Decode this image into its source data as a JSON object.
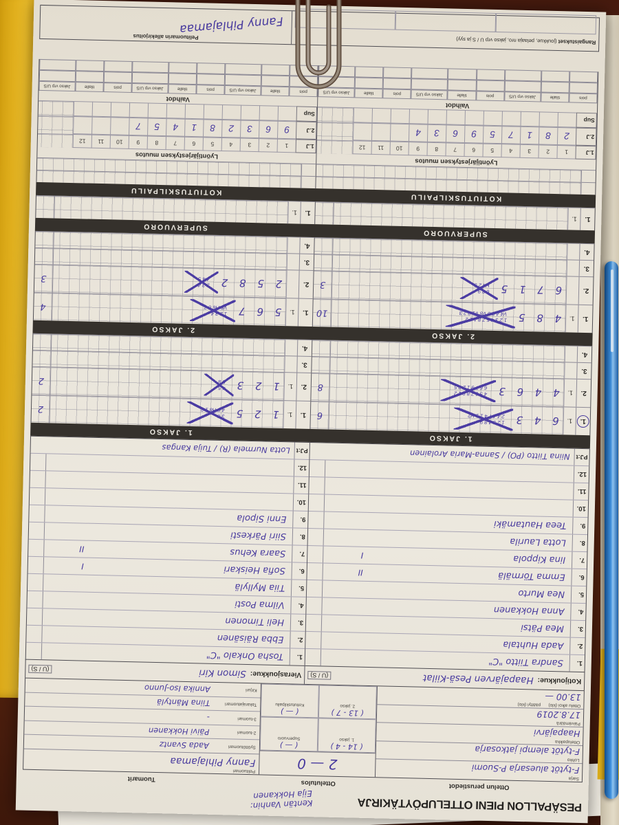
{
  "form": {
    "title": "PESÄPALLON PIENI OTTELUPÖYTÄKIRJA",
    "annotation": {
      "line1": "Kentän Vanhin:",
      "line2": "Eija Hokkanen"
    },
    "section_headers": {
      "perustiedot": "Ottelun perustiedot",
      "tulos": "Ottelutulos",
      "tuomarit": "Tuomarit"
    },
    "perustiedot": {
      "rows": [
        {
          "label": "Sarja",
          "value": "F-tytöt aluesarja P-Suomi"
        },
        {
          "label": "Lohko",
          "value": "F-tytöt alempi jatkosarja"
        },
        {
          "label": "Ottelupaikka",
          "value": "Haapajärvi"
        },
        {
          "label": "Päivämäärä",
          "value": "17.8.2019"
        }
      ],
      "time": {
        "label1": "Ottelu alkoi (klo)",
        "value1": "13.00 —",
        "label2": "päättyi (klo)",
        "value2": ""
      }
    },
    "tulos": {
      "total": "2 — 0",
      "parts": [
        {
          "value": "( 14 - 4 )",
          "label": "1. jakso"
        },
        {
          "value": "(  —  )",
          "label": "Supervuoro"
        },
        {
          "value": "( 13 - 7 )",
          "label": "2. jakso"
        },
        {
          "value": "(  —  )",
          "label": "Kotiutuskilpailu"
        }
      ]
    },
    "tuomarit": {
      "peli": {
        "label": "Pelituomari",
        "value": "Fanny Pihlajamaa"
      },
      "rows": [
        {
          "label": "Syöttötuomari",
          "value": "Aada Svantz"
        },
        {
          "label": "2-tuomari",
          "value": "Päivi Hokkanen"
        },
        {
          "label": "3-tuomari",
          "value": "-"
        },
        {
          "label": "Takarajatuomari",
          "value": "Tiina Mäntylä"
        },
        {
          "label": "Kirjuri",
          "value": "Annika Iso-Junno"
        }
      ]
    },
    "teams": {
      "home": {
        "label": "Kotijoukkue:",
        "name": "Haapajärven Pesä-Kiilat",
        "us": "(U / S)"
      },
      "away": {
        "label": "Vierasjoukkue:",
        "name": "Simon Kiri",
        "us": "(U / S)"
      }
    },
    "rosters": {
      "home": {
        "pj_label": "PJ:t",
        "pj": "Niina Tiitto (PO) / Sanna-Maria Arolainen",
        "players": [
          {
            "nr": "1.",
            "name": "Sandra Tiitto \"C\"",
            "mark": ""
          },
          {
            "nr": "2.",
            "name": "Aada Huhtala",
            "mark": ""
          },
          {
            "nr": "3.",
            "name": "Mea Pätsi",
            "mark": ""
          },
          {
            "nr": "4.",
            "name": "Anna Hokkanen",
            "mark": ""
          },
          {
            "nr": "5.",
            "name": "Nea Murto",
            "mark": ""
          },
          {
            "nr": "6.",
            "name": "Emma Törmälä",
            "mark": "II"
          },
          {
            "nr": "7.",
            "name": "Iina Kippola",
            "mark": "I"
          },
          {
            "nr": "8.",
            "name": "Lotta Laurila",
            "mark": ""
          },
          {
            "nr": "9.",
            "name": "Teea Hautamäki",
            "mark": ""
          },
          {
            "nr": "10.",
            "name": "",
            "mark": ""
          },
          {
            "nr": "11.",
            "name": "",
            "mark": ""
          },
          {
            "nr": "12.",
            "name": "",
            "mark": ""
          }
        ]
      },
      "away": {
        "pj_label": "PJ:t",
        "pj": "Lotta Nurmela (R) / Tuija Kangas",
        "players": [
          {
            "nr": "1.",
            "name": "Tosha Onkalo \"C\"",
            "mark": ""
          },
          {
            "nr": "2.",
            "name": "Ebba Räisänen",
            "mark": ""
          },
          {
            "nr": "3.",
            "name": "Heli Timonen",
            "mark": ""
          },
          {
            "nr": "4.",
            "name": "Vilma Posti",
            "mark": ""
          },
          {
            "nr": "5.",
            "name": "Tiia Myllylä",
            "mark": ""
          },
          {
            "nr": "6.",
            "name": "Sofia Heiskari",
            "mark": "I"
          },
          {
            "nr": "7.",
            "name": "Saara Kehus",
            "mark": "II"
          },
          {
            "nr": "8.",
            "name": "Siiri Pärkesti",
            "mark": ""
          },
          {
            "nr": "9.",
            "name": "Enni Sipola",
            "mark": ""
          },
          {
            "nr": "10.",
            "name": "",
            "mark": ""
          },
          {
            "nr": "11.",
            "name": "",
            "mark": ""
          },
          {
            "nr": "12.",
            "name": "",
            "mark": ""
          }
        ]
      }
    },
    "periods": [
      {
        "bar": "1. JAKSO",
        "home": [
          {
            "nr": "1.",
            "sub": "1.",
            "circled": true,
            "big": "6 4 3",
            "small": [
              "1 2 3 4 8 9",
              "2 4 4 7 4 1 1 H2"
            ],
            "x": true,
            "runs": "6"
          },
          {
            "nr": "2.",
            "sub": "1.",
            "big": "4 4 6 3",
            "small": [
              "4 5 6 7 8 9 1 2",
              "6 6 7 9 1 2 3 5"
            ],
            "x": true,
            "runs": "8"
          },
          {
            "nr": "3.",
            "sub": "",
            "big": "",
            "small": [],
            "x": false,
            "runs": ""
          },
          {
            "nr": "4.",
            "sub": "",
            "big": "",
            "small": [],
            "x": false,
            "runs": ""
          }
        ],
        "away": [
          {
            "nr": "1.",
            "sub": "1.",
            "circled": false,
            "big": "1 2 5",
            "small": [
              "3 6",
              "4 5 H8 1 2"
            ],
            "x": true,
            "runs": "2"
          },
          {
            "nr": "2.",
            "sub": "1.",
            "big": "1 2 3",
            "small": [
              "4 5",
              "8 8"
            ],
            "x": true,
            "runs": "2"
          },
          {
            "nr": "3.",
            "sub": "",
            "big": "",
            "small": [],
            "x": false,
            "runs": ""
          },
          {
            "nr": "4.",
            "sub": "",
            "big": "",
            "small": [],
            "x": false,
            "runs": ""
          }
        ]
      },
      {
        "bar": "2. JAKSO",
        "home": [
          {
            "nr": "1.",
            "sub": "1.",
            "circled": false,
            "big": "4 8 5",
            "small": [
              "1 2 3 4 5 7 8 1 2 2",
              "V4 4 5 8 V8 V1 2 2 3"
            ],
            "x": true,
            "runs": "10"
          },
          {
            "nr": "2.",
            "sub": "",
            "big": "6 7 1 5",
            "small": [
              "6 8 9",
              "H4 2 3"
            ],
            "x": true,
            "runs": "3"
          },
          {
            "nr": "3.",
            "sub": "",
            "big": "",
            "small": [],
            "x": false,
            "runs": ""
          },
          {
            "nr": "4.",
            "sub": "",
            "big": "",
            "small": [],
            "x": false,
            "runs": ""
          }
        ],
        "away": [
          {
            "nr": "1.",
            "sub": "1.",
            "circled": false,
            "big": "5 6 7",
            "small": [
              "1 2 3 4",
              "V5 H6 6 7"
            ],
            "x": true,
            "runs": "4"
          },
          {
            "nr": "2.",
            "sub": "",
            "big": "2 5 8 2",
            "small": [
              "2 3 4",
              "4 4 5"
            ],
            "x": true,
            "runs": "3"
          },
          {
            "nr": "3.",
            "sub": "",
            "big": "",
            "small": [],
            "x": false,
            "runs": ""
          },
          {
            "nr": "4.",
            "sub": "",
            "big": "",
            "small": [],
            "x": false,
            "runs": ""
          }
        ]
      }
    ],
    "supervuoro": {
      "bar": "SUPERVUORO",
      "home": [
        {
          "nr": "1.",
          "sub": "1.",
          "circled": false,
          "big": "",
          "small": [],
          "x": false,
          "runs": ""
        }
      ],
      "away": [
        {
          "nr": "1.",
          "sub": "1.",
          "circled": false,
          "big": "",
          "small": [],
          "x": false,
          "runs": ""
        }
      ]
    },
    "kotiutus": {
      "bar": "KOTIUTUSKILPAILU"
    },
    "muutos": {
      "header": "Lyöntijärjestyksen muutos",
      "cols": [
        "1",
        "2",
        "3",
        "4",
        "5",
        "6",
        "7",
        "8",
        "9",
        "10",
        "11",
        "12"
      ],
      "rows": [
        {
          "label": "1.J",
          "printed": true,
          "home": "",
          "away": ""
        },
        {
          "label": "2.J",
          "printed": false,
          "home": "2 8 1 7 5 9 6 3 4",
          "away": "9 6 3 2 8 1 4 5 7"
        },
        {
          "label": "Sup",
          "printed": false,
          "home": "",
          "away": ""
        }
      ]
    },
    "vaihdot": {
      "header": "Vaihdot",
      "cols": [
        "pois",
        "tilalle",
        "Jakso vrp U/S"
      ],
      "groups": 3,
      "empty_rows": 2
    },
    "bottom": {
      "rangaistukset_bold": "Rangaistukset",
      "rangaistukset_rest": "(joukkue, pelaaja nro, jakso vrp U / S ja syy)",
      "allekirjoitus": "Pelituomarin allekirjoitus",
      "signature": "Fanny Pihlajamaa"
    },
    "colors": {
      "ink": "#483a9e",
      "bar": "#35312c",
      "paper": "#e9e4d9",
      "folder": "#eab91d",
      "pen": "#2e7fd6"
    }
  }
}
